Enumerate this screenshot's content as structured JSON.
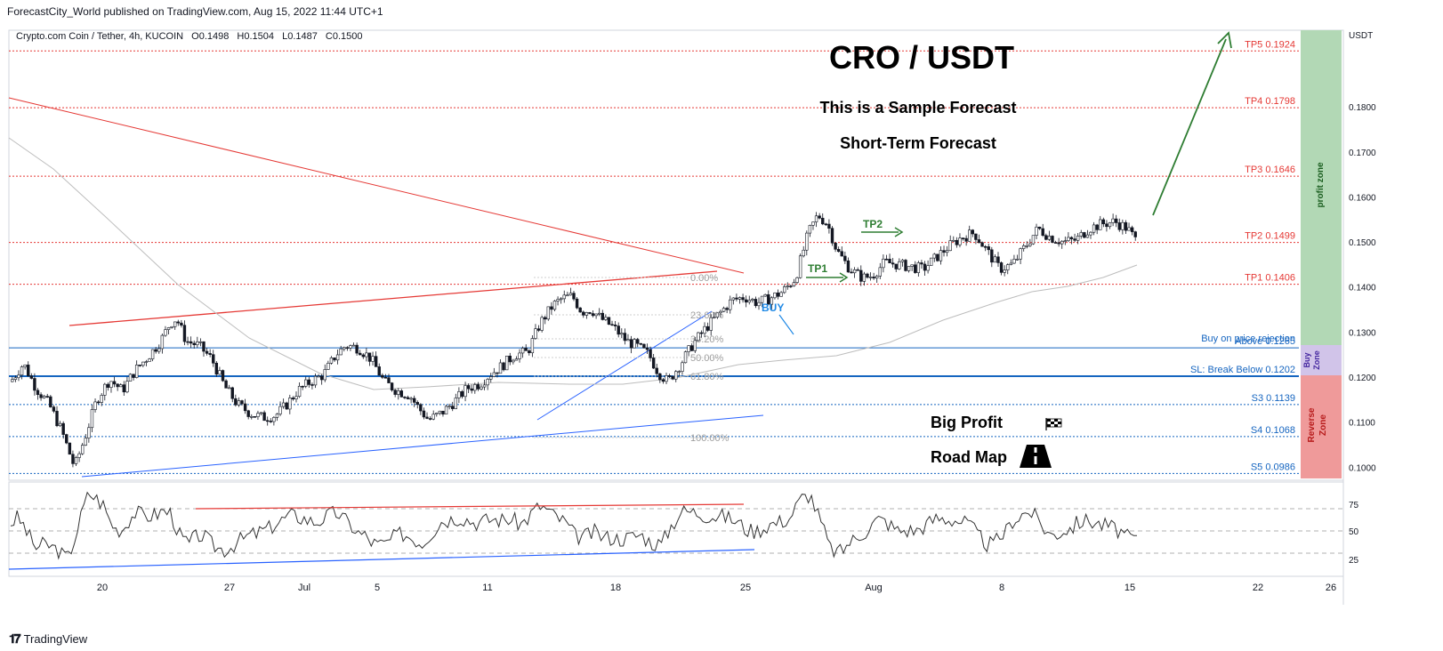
{
  "header": {
    "published": "ForecastCity_World published on TradingView.com, Aug 15, 2022 11:44 UTC+1"
  },
  "legend": {
    "symbol": "Crypto.com Coin / Tether, 4h, KUCOIN",
    "o": "O0.1498",
    "h": "H0.1504",
    "l": "L0.1487",
    "c": "C0.1500"
  },
  "annotations": {
    "title": "CRO / USDT",
    "sub1": "This is a Sample Forecast",
    "sub2": "Short-Term Forecast",
    "big_profit": "Big Profit",
    "road_map": "Road Map",
    "buy": "BUY",
    "tp1_tag": "TP1",
    "tp2_tag": "TP2",
    "profit_zone": "profit zone",
    "buy_zone_1": "Buy",
    "buy_zone_2": "Zone",
    "reverse_zone_1": "Reverse",
    "reverse_zone_2": "Zone"
  },
  "levels": [
    {
      "label": "TP5 0.1924",
      "value": 0.1924,
      "color": "#e53935"
    },
    {
      "label": "TP4 0.1798",
      "value": 0.1798,
      "color": "#e53935"
    },
    {
      "label": "TP3 0.1646",
      "value": 0.1646,
      "color": "#e53935"
    },
    {
      "label": "TP2 0.1499",
      "value": 0.1499,
      "color": "#e53935"
    },
    {
      "label": "TP1 0.1406",
      "value": 0.1406,
      "color": "#e53935"
    },
    {
      "label": "Above 0.1265",
      "value": 0.1265,
      "color": "#1565c0"
    },
    {
      "label": "SL: Break Below 0.1202",
      "value": 0.1202,
      "color": "#1565c0"
    },
    {
      "label": "S3 0.1139",
      "value": 0.1139,
      "color": "#1565c0"
    },
    {
      "label": "S4 0.1068",
      "value": 0.1068,
      "color": "#1565c0"
    },
    {
      "label": "S5 0.0986",
      "value": 0.0986,
      "color": "#1565c0"
    }
  ],
  "buy_rejection_label": "Buy on price rejection",
  "fib": [
    "0.00%",
    "23.60%",
    "38.20%",
    "50.00%",
    "61.80%",
    "100.00%"
  ],
  "chart_data": {
    "type": "candlestick",
    "title": "CRO / USDT",
    "y_axis_unit": "USDT",
    "ylim": [
      0.0975,
      0.197
    ],
    "y_ticks": [
      "0.1000",
      "0.1100",
      "0.1200",
      "0.1300",
      "0.1400",
      "0.1500",
      "0.1600",
      "0.1700",
      "0.1800"
    ],
    "x_ticks": [
      "20",
      "27",
      "Jul",
      "5",
      "11",
      "18",
      "25",
      "Aug",
      "8",
      "15",
      "22",
      "26"
    ],
    "close_path": [
      [
        0,
        0.119
      ],
      [
        8,
        0.123
      ],
      [
        16,
        0.1175
      ],
      [
        24,
        0.114
      ],
      [
        32,
        0.108
      ],
      [
        40,
        0.1
      ],
      [
        46,
        0.106
      ],
      [
        54,
        0.115
      ],
      [
        62,
        0.1195
      ],
      [
        70,
        0.117
      ],
      [
        78,
        0.1215
      ],
      [
        86,
        0.1245
      ],
      [
        94,
        0.128
      ],
      [
        100,
        0.132
      ],
      [
        104,
        0.133
      ],
      [
        110,
        0.128
      ],
      [
        118,
        0.127
      ],
      [
        126,
        0.124
      ],
      [
        134,
        0.118
      ],
      [
        142,
        0.114
      ],
      [
        150,
        0.112
      ],
      [
        158,
        0.111
      ],
      [
        166,
        0.1115
      ],
      [
        172,
        0.1135
      ],
      [
        180,
        0.117
      ],
      [
        188,
        0.119
      ],
      [
        196,
        0.1205
      ],
      [
        204,
        0.125
      ],
      [
        210,
        0.127
      ],
      [
        218,
        0.1265
      ],
      [
        226,
        0.124
      ],
      [
        234,
        0.119
      ],
      [
        242,
        0.117
      ],
      [
        250,
        0.116
      ],
      [
        256,
        0.113
      ],
      [
        262,
        0.1105
      ],
      [
        270,
        0.112
      ],
      [
        278,
        0.1145
      ],
      [
        286,
        0.1175
      ],
      [
        294,
        0.1185
      ],
      [
        300,
        0.1205
      ],
      [
        308,
        0.1225
      ],
      [
        316,
        0.125
      ],
      [
        324,
        0.1255
      ],
      [
        332,
        0.132
      ],
      [
        340,
        0.136
      ],
      [
        346,
        0.1375
      ],
      [
        352,
        0.138
      ],
      [
        358,
        0.1345
      ],
      [
        364,
        0.135
      ],
      [
        370,
        0.133
      ],
      [
        378,
        0.131
      ],
      [
        386,
        0.128
      ],
      [
        392,
        0.127
      ],
      [
        400,
        0.125
      ],
      [
        406,
        0.121
      ],
      [
        412,
        0.119
      ],
      [
        420,
        0.123
      ],
      [
        428,
        0.1275
      ],
      [
        436,
        0.131
      ],
      [
        444,
        0.134
      ],
      [
        452,
        0.137
      ],
      [
        460,
        0.1378
      ],
      [
        468,
        0.1365
      ],
      [
        476,
        0.1375
      ],
      [
        484,
        0.139
      ],
      [
        492,
        0.142
      ],
      [
        500,
        0.152
      ],
      [
        506,
        0.156
      ],
      [
        512,
        0.154
      ],
      [
        518,
        0.148
      ],
      [
        526,
        0.144
      ],
      [
        534,
        0.142
      ],
      [
        540,
        0.1425
      ],
      [
        548,
        0.1455
      ],
      [
        556,
        0.145
      ],
      [
        564,
        0.1445
      ],
      [
        572,
        0.144
      ],
      [
        580,
        0.1465
      ],
      [
        588,
        0.149
      ],
      [
        596,
        0.151
      ],
      [
        604,
        0.152
      ],
      [
        612,
        0.148
      ],
      [
        620,
        0.144
      ],
      [
        628,
        0.145
      ],
      [
        636,
        0.149
      ],
      [
        644,
        0.153
      ],
      [
        652,
        0.151
      ],
      [
        660,
        0.15
      ],
      [
        668,
        0.1505
      ],
      [
        676,
        0.153
      ],
      [
        684,
        0.154
      ],
      [
        692,
        0.1545
      ],
      [
        700,
        0.153
      ],
      [
        706,
        0.15
      ]
    ],
    "rsi": {
      "levels": [
        75,
        50,
        25
      ],
      "last": 44
    }
  },
  "tv_brand": "TradingView",
  "colors": {
    "profit_zone": "#b2d8b5",
    "buy_zone": "#d1c4e9",
    "reverse_zone": "#ef9a9a",
    "green_arrow": "#2e7d32",
    "trend_red": "#e53935",
    "trend_blue": "#2962ff",
    "sma": "#b0b0b0"
  }
}
